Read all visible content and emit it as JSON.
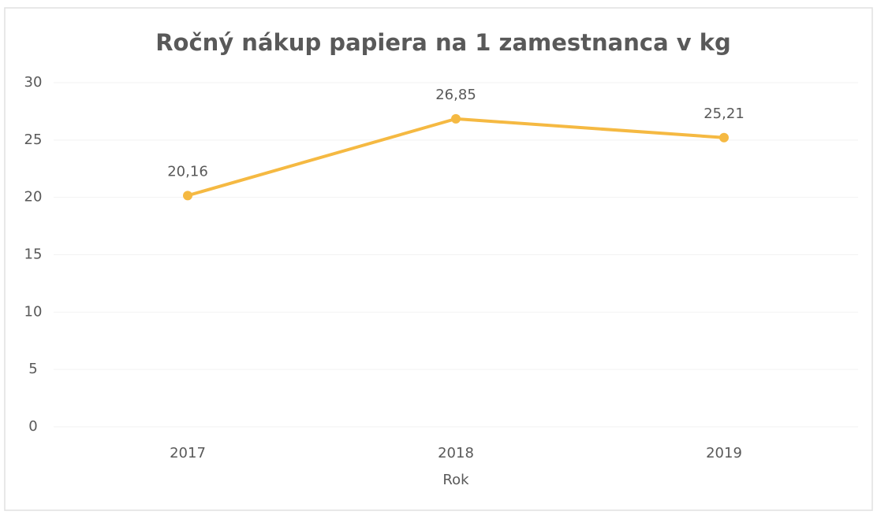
{
  "chart_data": {
    "type": "line",
    "title": "Ročný nákup papiera na 1 zamestnanca v kg",
    "categories": [
      "2017",
      "2018",
      "2019"
    ],
    "values": [
      20.16,
      26.85,
      25.21
    ],
    "value_labels": [
      "20,16",
      "26,85",
      "25,21"
    ],
    "color": "#f5b942",
    "xlabel": "Rok",
    "ylim": [
      0,
      30
    ],
    "yticks": [
      0,
      5,
      10,
      15,
      20,
      25,
      30
    ],
    "grid": true
  }
}
